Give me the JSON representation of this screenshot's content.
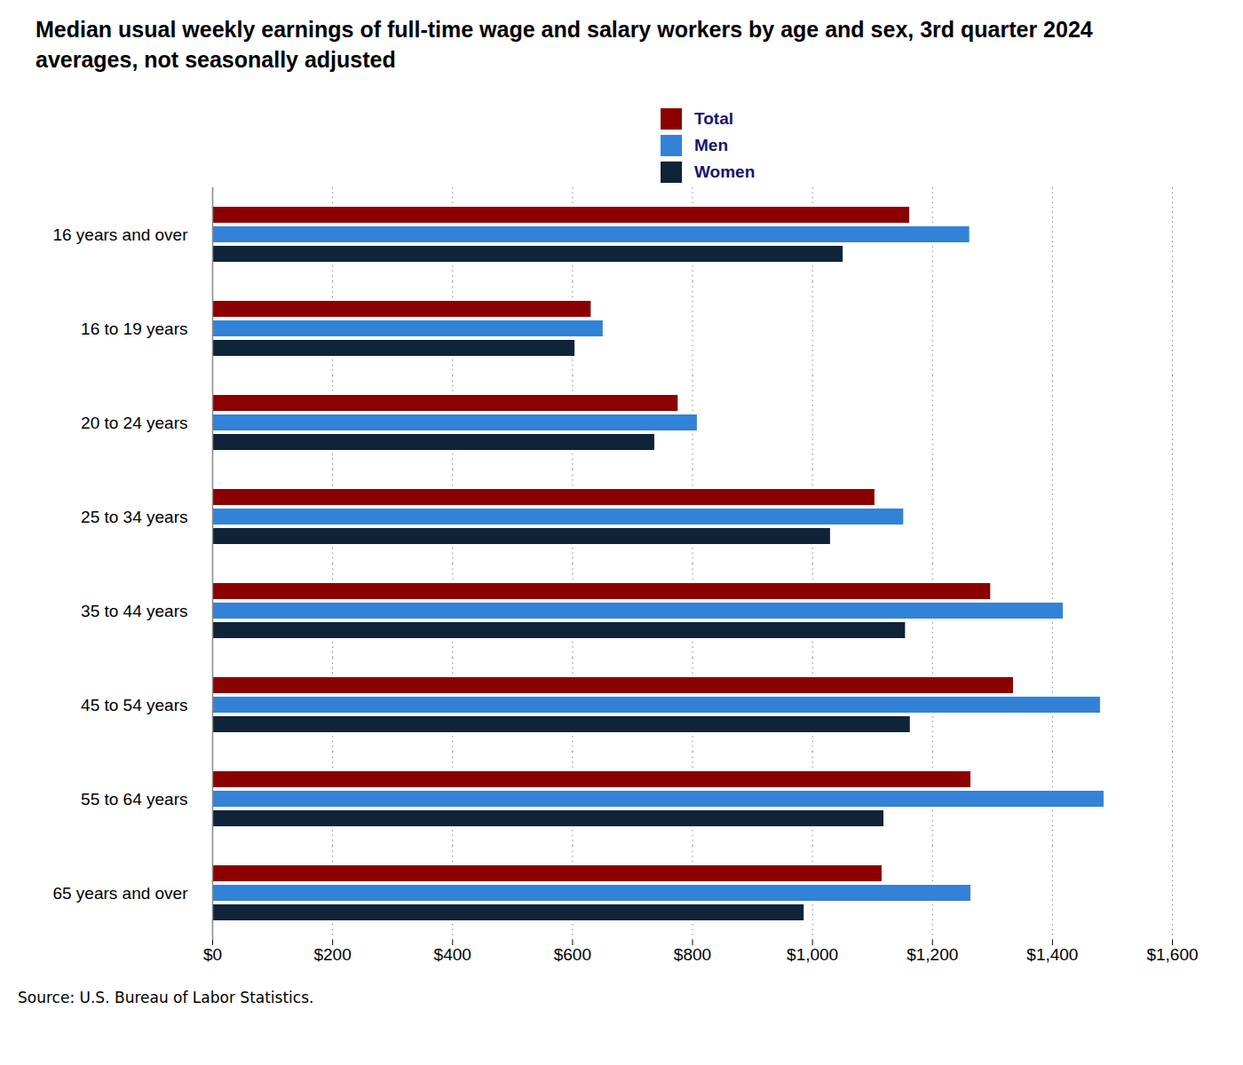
{
  "chart_data": {
    "type": "bar",
    "orientation": "horizontal",
    "title": "Median usual weekly earnings of full-time wage and salary workers by age and sex, 3rd quarter 2024 averages, not seasonally adjusted",
    "categories": [
      "16 years and over",
      "16 to 19 years",
      "20 to 24 years",
      "25 to 34 years",
      "35 to 44 years",
      "45 to 54 years",
      "55 to 64 years",
      "65 years and over"
    ],
    "series": [
      {
        "name": "Total",
        "color": "#8b0000",
        "values": [
          1162,
          631,
          776,
          1104,
          1297,
          1335,
          1264,
          1116
        ]
      },
      {
        "name": "Men",
        "color": "#3282d8",
        "values": [
          1262,
          651,
          808,
          1152,
          1418,
          1480,
          1486,
          1264
        ]
      },
      {
        "name": "Women",
        "color": "#0f2339",
        "values": [
          1051,
          604,
          737,
          1030,
          1155,
          1163,
          1119,
          986
        ]
      }
    ],
    "xlim": [
      0,
      1600
    ],
    "xticks": [
      {
        "value": 0,
        "label": "$0"
      },
      {
        "value": 200,
        "label": "$200"
      },
      {
        "value": 400,
        "label": "$400"
      },
      {
        "value": 600,
        "label": "$600"
      },
      {
        "value": 800,
        "label": "$800"
      },
      {
        "value": 1000,
        "label": "$1,000"
      },
      {
        "value": 1200,
        "label": "$1,200"
      },
      {
        "value": 1400,
        "label": "$1,400"
      },
      {
        "value": 1600,
        "label": "$1,600"
      }
    ],
    "grid": true,
    "legend": "top",
    "source": "Source: U.S. Bureau of Labor Statistics."
  }
}
